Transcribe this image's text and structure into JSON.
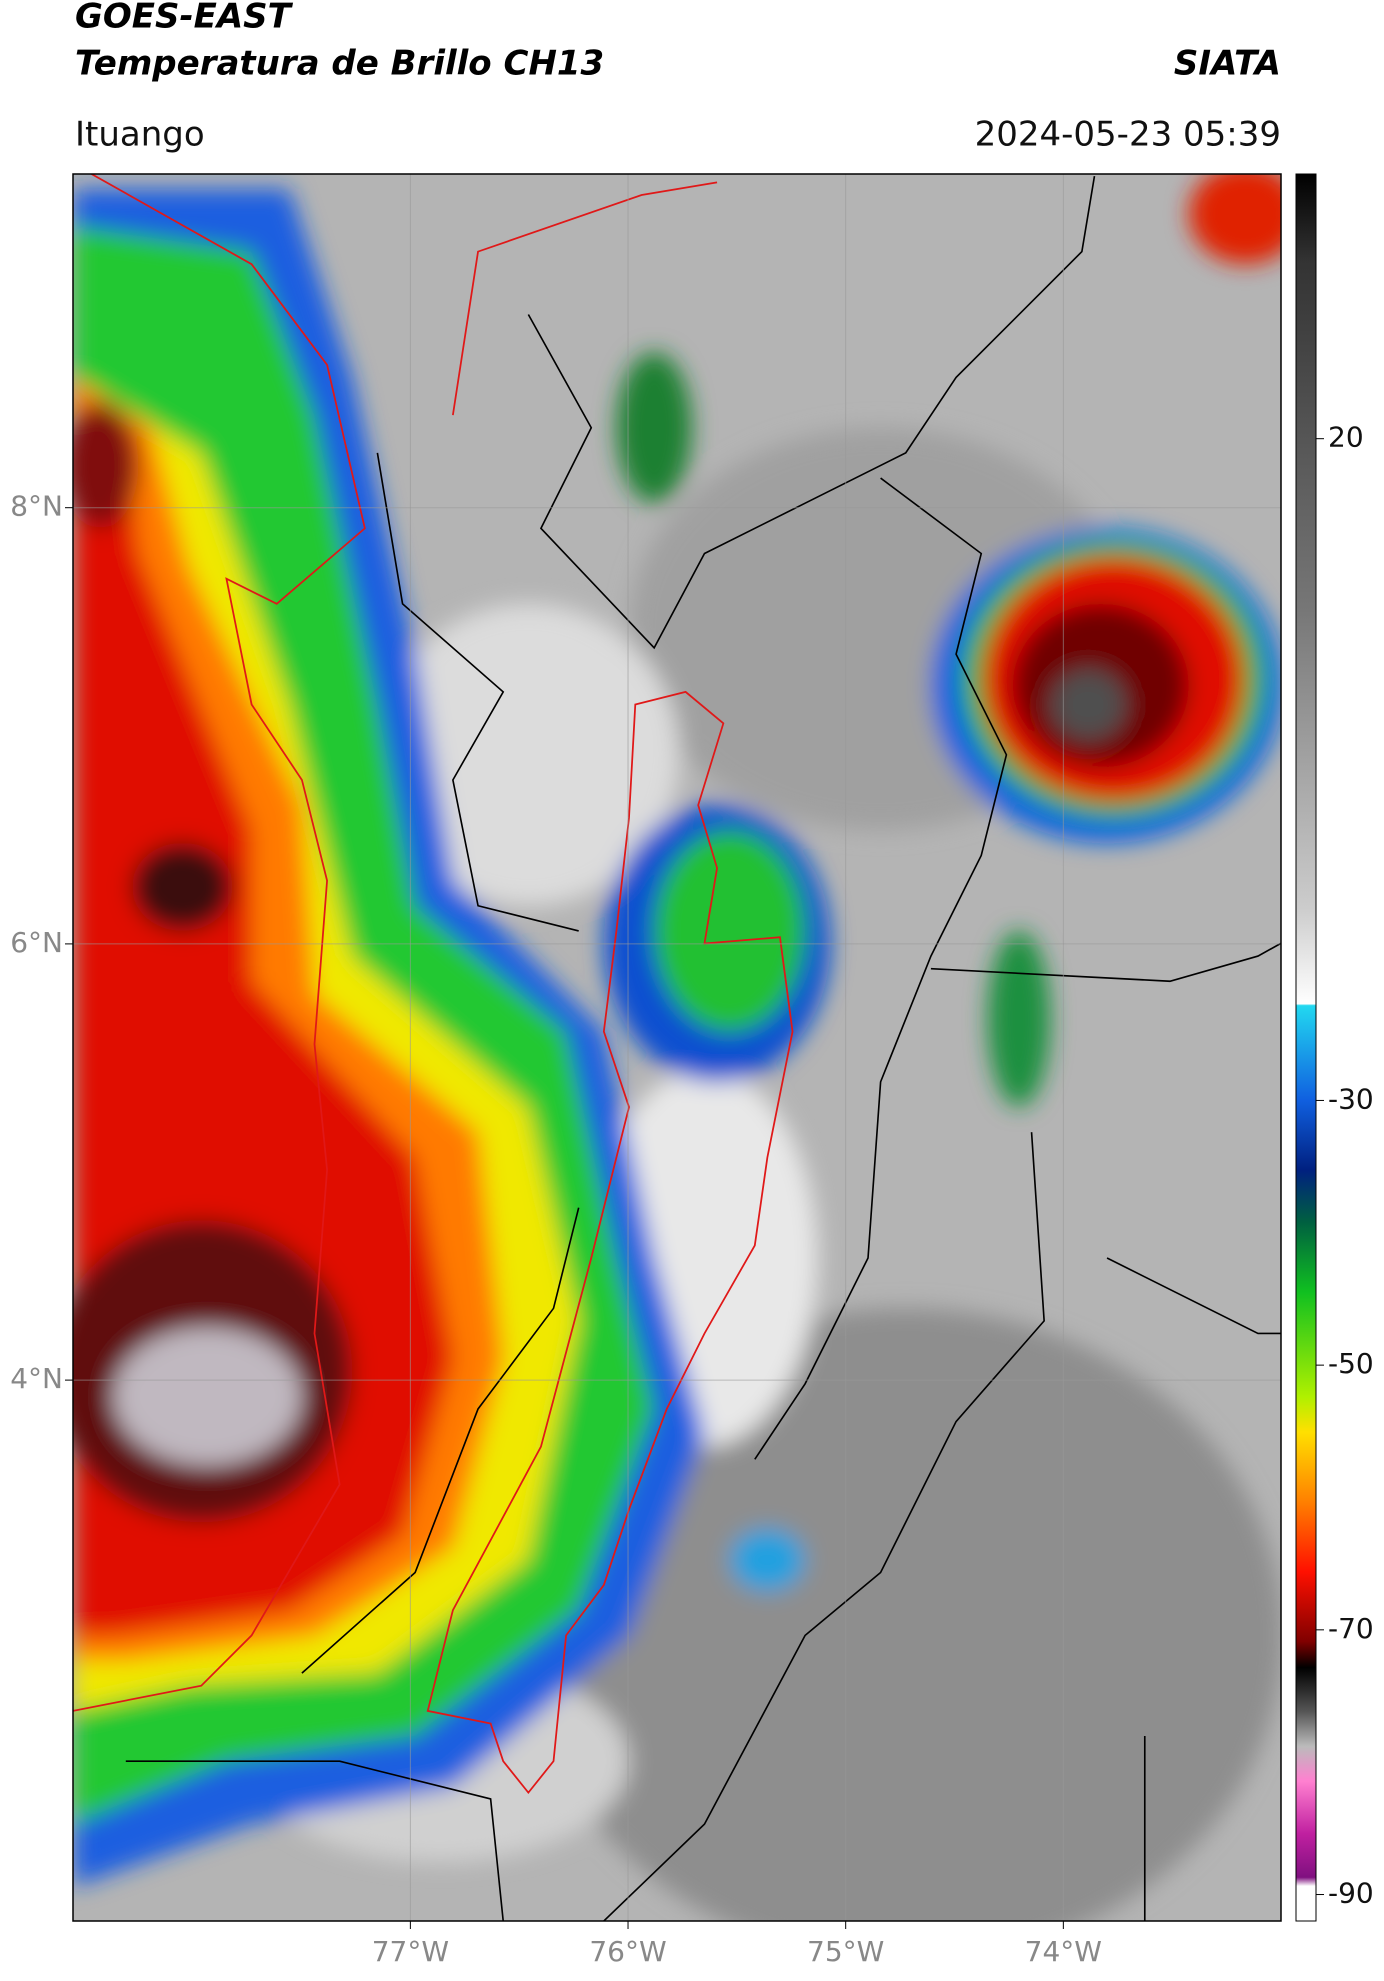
{
  "header": {
    "title": "GOES-EAST",
    "subtitle": "Temperatura de Brillo CH13",
    "source": "SIATA",
    "location": "Ituango",
    "datetime": "2024-05-23 05:39"
  },
  "map": {
    "xlim": [
      -78.55,
      -73.0
    ],
    "ylim": [
      1.52,
      9.53
    ],
    "xticks": [
      {
        "value": -77,
        "label": "77°W"
      },
      {
        "value": -76,
        "label": "76°W"
      },
      {
        "value": -75,
        "label": "75°W"
      },
      {
        "value": -74,
        "label": "74°W"
      }
    ],
    "yticks": [
      {
        "value": 8,
        "label": "8°N"
      },
      {
        "value": 6,
        "label": "6°N"
      },
      {
        "value": 4,
        "label": "4°N"
      }
    ],
    "grid": true
  },
  "colorbar": {
    "lim": [
      -92,
      40
    ],
    "ticks": [
      20,
      -30,
      -50,
      -70,
      -90
    ]
  }
}
